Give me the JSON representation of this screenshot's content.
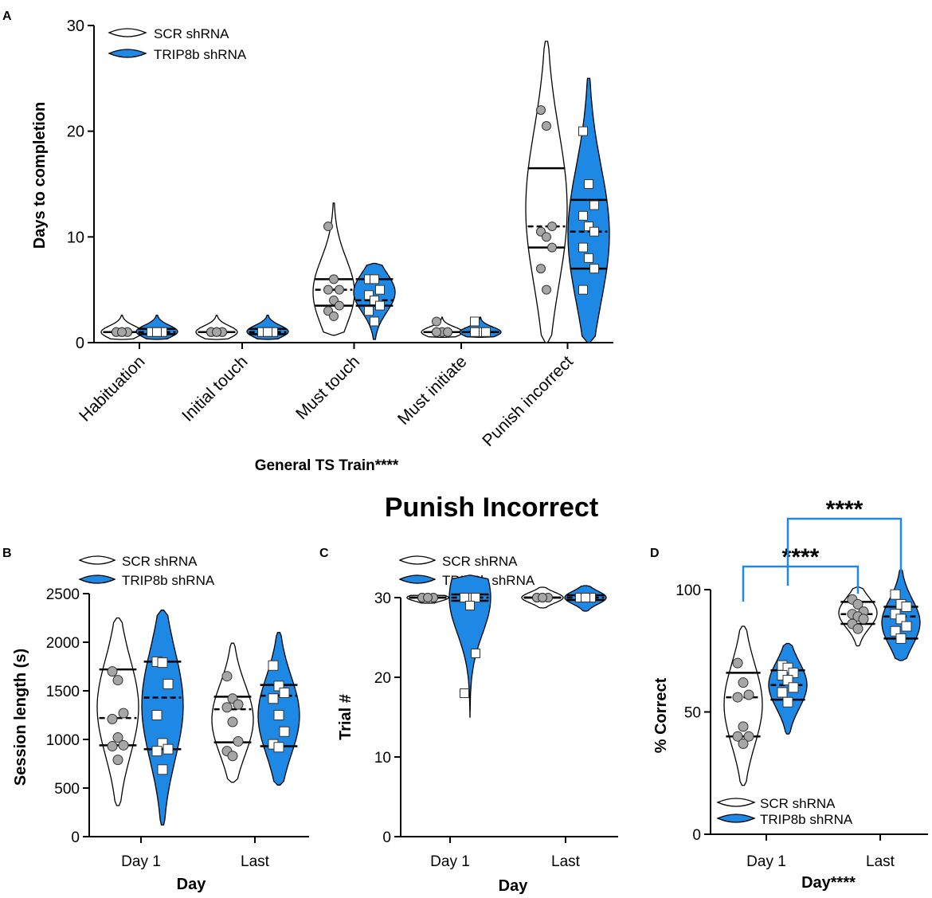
{
  "heading": "Punish Incorrect",
  "colors": {
    "scr_fill": "#ffffff",
    "trip_fill": "#1e88e5",
    "stroke": "#000000",
    "circle_fill": "#a6a6a6",
    "sig": "#1e88e5"
  },
  "legend": {
    "scr": "SCR shRNA",
    "trip": "TRIP8b shRNA"
  },
  "chart_data": [
    {
      "panel": "A",
      "type": "violin",
      "ylabel": "Days to completion",
      "xlabel": "General TS Train****",
      "ylim": [
        0,
        30
      ],
      "yticks": [
        "0",
        "10",
        "20",
        "30"
      ],
      "categories": [
        "Habituation",
        "Initial touch",
        "Must touch",
        "Must initiate",
        "Punish incorrect"
      ],
      "series": [
        {
          "name": "SCR shRNA",
          "groups": [
            {
              "min": 0.3,
              "max": 2.6,
              "median": 1,
              "q1": 1,
              "q3": 1,
              "points": [
                1,
                1,
                1,
                1,
                1,
                1,
                1,
                1
              ]
            },
            {
              "min": 0.3,
              "max": 2.6,
              "median": 1,
              "q1": 1,
              "q3": 1,
              "points": [
                1,
                1,
                1,
                1,
                1,
                1,
                1,
                1
              ]
            },
            {
              "min": 0.7,
              "max": 13.2,
              "median": 5,
              "q1": 3.5,
              "q3": 6,
              "points": [
                11,
                6,
                5,
                5,
                4,
                3.5,
                3,
                2.5
              ]
            },
            {
              "min": 0.5,
              "max": 2.4,
              "median": 1,
              "q1": 1,
              "q3": 1,
              "points": [
                2,
                1,
                1,
                1,
                1,
                1,
                1
              ]
            },
            {
              "min": 0,
              "max": 28.5,
              "median": 11,
              "q1": 9,
              "q3": 16.5,
              "points": [
                22,
                20.5,
                11,
                10.5,
                10,
                9,
                7,
                5
              ]
            }
          ]
        },
        {
          "name": "TRIP8b shRNA",
          "groups": [
            {
              "min": 0.3,
              "max": 2.6,
              "median": 1,
              "q1": 0.8,
              "q3": 1.3,
              "points": [
                1,
                1,
                1,
                1,
                1,
                1,
                1,
                1
              ]
            },
            {
              "min": 0.3,
              "max": 2.6,
              "median": 1,
              "q1": 0.8,
              "q3": 1.3,
              "points": [
                1,
                1,
                1,
                1,
                1,
                1,
                1,
                1
              ]
            },
            {
              "min": 0.3,
              "max": 7.5,
              "median": 4,
              "q1": 3.5,
              "q3": 6,
              "points": [
                6,
                6,
                5,
                4.5,
                4,
                3.5,
                3,
                2
              ]
            },
            {
              "min": 0.5,
              "max": 2.4,
              "median": 1,
              "q1": 1,
              "q3": 1,
              "points": [
                2,
                1,
                1,
                1,
                1,
                1,
                1
              ]
            },
            {
              "min": 0,
              "max": 25,
              "median": 10.5,
              "q1": 7,
              "q3": 13.5,
              "points": [
                20,
                15,
                13,
                12,
                11,
                10.5,
                9,
                8,
                7,
                5
              ]
            }
          ]
        }
      ]
    },
    {
      "panel": "B",
      "type": "violin",
      "ylabel": "Session length (s)",
      "xlabel": "Day",
      "ylim": [
        0,
        2500
      ],
      "yticks": [
        "0",
        "500",
        "1000",
        "1500",
        "2000",
        "2500"
      ],
      "categories": [
        "Day 1",
        "Last"
      ],
      "series": [
        {
          "name": "SCR shRNA",
          "groups": [
            {
              "min": 320,
              "max": 2250,
              "median": 1220,
              "q1": 940,
              "q3": 1720,
              "points": [
                1700,
                1610,
                1270,
                1210,
                1020,
                940,
                930,
                790
              ]
            },
            {
              "min": 560,
              "max": 1990,
              "median": 1310,
              "q1": 970,
              "q3": 1440,
              "points": [
                1650,
                1420,
                1360,
                1330,
                1180,
                980,
                880,
                830
              ]
            }
          ]
        },
        {
          "name": "TRIP8b shRNA",
          "groups": [
            {
              "min": 120,
              "max": 2330,
              "median": 1430,
              "q1": 900,
              "q3": 1800,
              "points": [
                1800,
                1790,
                1570,
                1250,
                960,
                900,
                880,
                690
              ]
            },
            {
              "min": 530,
              "max": 2100,
              "median": 1450,
              "q1": 930,
              "q3": 1560,
              "points": [
                1760,
                1550,
                1480,
                1420,
                1250,
                1080,
                950,
                920
              ]
            }
          ]
        }
      ]
    },
    {
      "panel": "C",
      "type": "violin",
      "ylabel": "Trial #",
      "xlabel": "Day",
      "ylim": [
        0,
        35
      ],
      "yticks": [
        "0",
        "10",
        "20",
        "30"
      ],
      "categories": [
        "Day 1",
        "Last"
      ],
      "series": [
        {
          "name": "SCR shRNA",
          "groups": [
            {
              "min": 29.3,
              "max": 30.3,
              "median": 30,
              "q1": 30,
              "q3": 30,
              "points": [
                30,
                30,
                30,
                30,
                30,
                30,
                30,
                30
              ]
            },
            {
              "min": 28.7,
              "max": 31.3,
              "median": 30,
              "q1": 30,
              "q3": 30,
              "points": [
                30,
                30,
                30,
                30,
                30,
                30,
                30,
                30
              ]
            }
          ]
        },
        {
          "name": "TRIP8b shRNA",
          "groups": [
            {
              "min": 15,
              "max": 32.8,
              "median": 30,
              "q1": 29.6,
              "q3": 30.4,
              "points": [
                30,
                30,
                30,
                30,
                29,
                23,
                18
              ]
            },
            {
              "min": 28.3,
              "max": 31.5,
              "median": 30,
              "q1": 29.7,
              "q3": 30.3,
              "points": [
                30,
                30,
                30,
                30,
                30,
                30,
                30,
                30
              ]
            }
          ]
        }
      ]
    },
    {
      "panel": "D",
      "type": "violin",
      "ylabel": "% Correct",
      "xlabel": "Day****",
      "ylim": [
        0,
        110
      ],
      "yticks": [
        "0",
        "50",
        "100"
      ],
      "categories": [
        "Day 1",
        "Last"
      ],
      "significance": [
        {
          "from": 0,
          "to": 2,
          "label": "****"
        },
        {
          "from": 1,
          "to": 3,
          "label": "****"
        }
      ],
      "series": [
        {
          "name": "SCR shRNA",
          "groups": [
            {
              "min": 20,
              "max": 85,
              "median": 56,
              "q1": 40,
              "q3": 66,
              "points": [
                70,
                62,
                57,
                56,
                44,
                40,
                40,
                37
              ]
            },
            {
              "min": 77,
              "max": 101,
              "median": 90,
              "q1": 86,
              "q3": 95,
              "points": [
                96,
                94,
                91,
                90,
                89,
                88,
                86,
                84
              ]
            }
          ]
        },
        {
          "name": "TRIP8b shRNA",
          "groups": [
            {
              "min": 41,
              "max": 78,
              "median": 61,
              "q1": 55,
              "q3": 67,
              "points": [
                69,
                68,
                66,
                65,
                63,
                60,
                58,
                54
              ]
            },
            {
              "min": 71,
              "max": 108,
              "median": 89,
              "q1": 80,
              "q3": 93,
              "points": [
                98,
                94,
                93,
                90,
                88,
                85,
                83,
                80
              ]
            }
          ]
        }
      ]
    }
  ]
}
